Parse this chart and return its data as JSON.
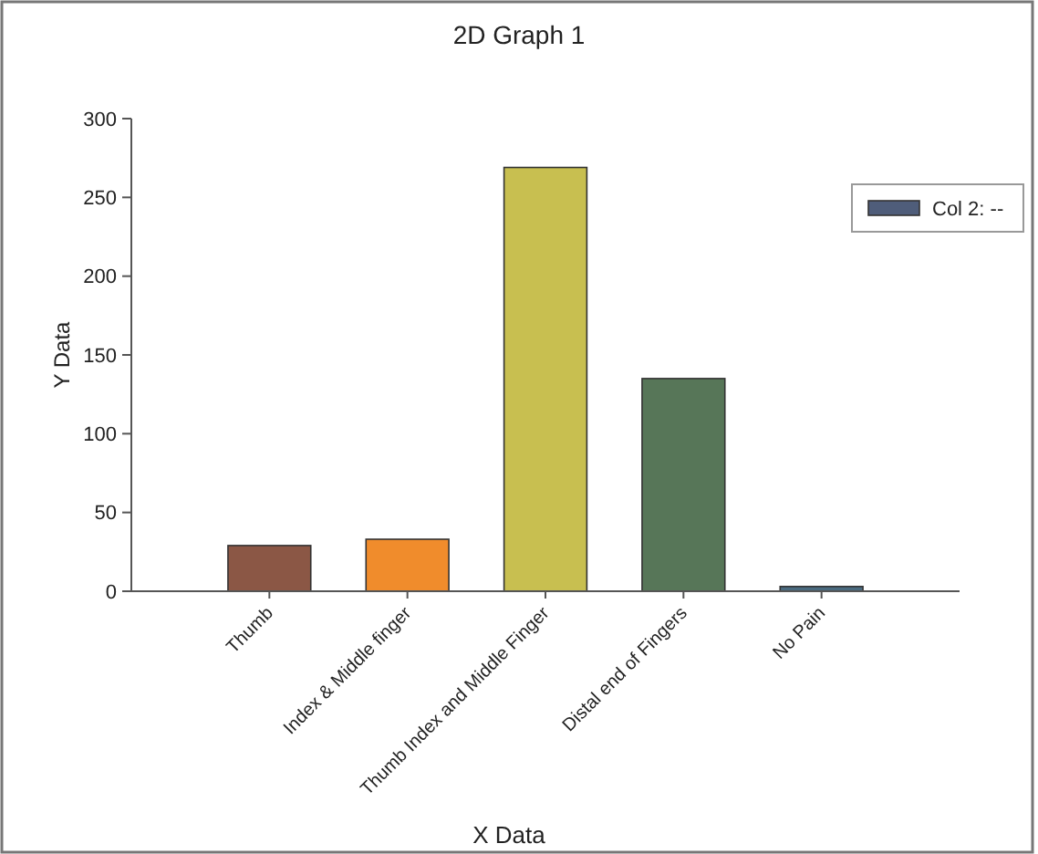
{
  "chart_data": {
    "type": "bar",
    "title": "2D Graph 1",
    "xlabel": "X Data",
    "ylabel": "Y Data",
    "categories": [
      "Thumb",
      "Index & Middle finger",
      "Thumb Index and Middle Finger",
      "Distal end of Fingers",
      "No Pain"
    ],
    "series": [
      {
        "name": "Col 2: --",
        "color": "#4f5d7a",
        "colors": [
          "#8b5745",
          "#f08c2c",
          "#c8bf50",
          "#577658",
          "#4a6b80"
        ],
        "values": [
          29,
          33,
          269,
          135,
          3
        ]
      }
    ],
    "ylim": [
      0,
      300
    ],
    "yticks": [
      0,
      50,
      100,
      150,
      200,
      250,
      300
    ],
    "grid": false,
    "legend": "top right"
  }
}
